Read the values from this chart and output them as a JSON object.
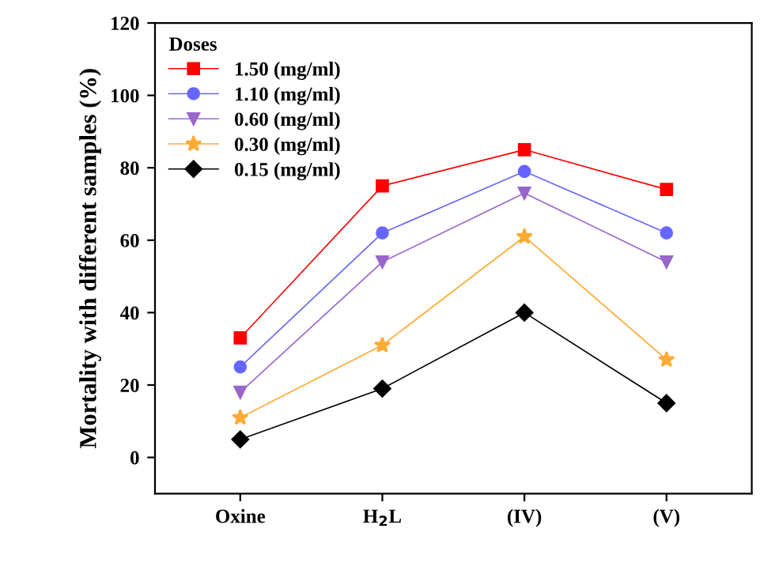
{
  "chart_data": {
    "type": "line",
    "ylabel": "Mortality with different samples (%)",
    "legend_title": "Doses",
    "categories": [
      "Oxine",
      "H$_{2}$L",
      "(IV)",
      "(V)"
    ],
    "series": [
      {
        "name": "1.50 (mg/ml)",
        "color": "#ff0000",
        "marker": "square",
        "values": [
          33,
          75,
          85,
          74
        ]
      },
      {
        "name": "1.10 (mg/ml)",
        "color": "#6666ff",
        "marker": "circle",
        "values": [
          25,
          62,
          79,
          62
        ]
      },
      {
        "name": "0.60 (mg/ml)",
        "color": "#9966cc",
        "marker": "triangle",
        "values": [
          18,
          54,
          73,
          54
        ]
      },
      {
        "name": "0.30 (mg/ml)",
        "color": "#ffaa33",
        "marker": "star",
        "values": [
          11,
          31,
          61,
          27
        ]
      },
      {
        "name": "0.15 (mg/ml)",
        "color": "#000000",
        "marker": "diamond",
        "values": [
          5,
          19,
          40,
          15
        ]
      }
    ],
    "ylim": [
      -10,
      120
    ],
    "yticks": [
      0,
      20,
      40,
      60,
      80,
      100,
      120
    ],
    "grid": false,
    "legend": "top left",
    "line_style": "solid"
  }
}
